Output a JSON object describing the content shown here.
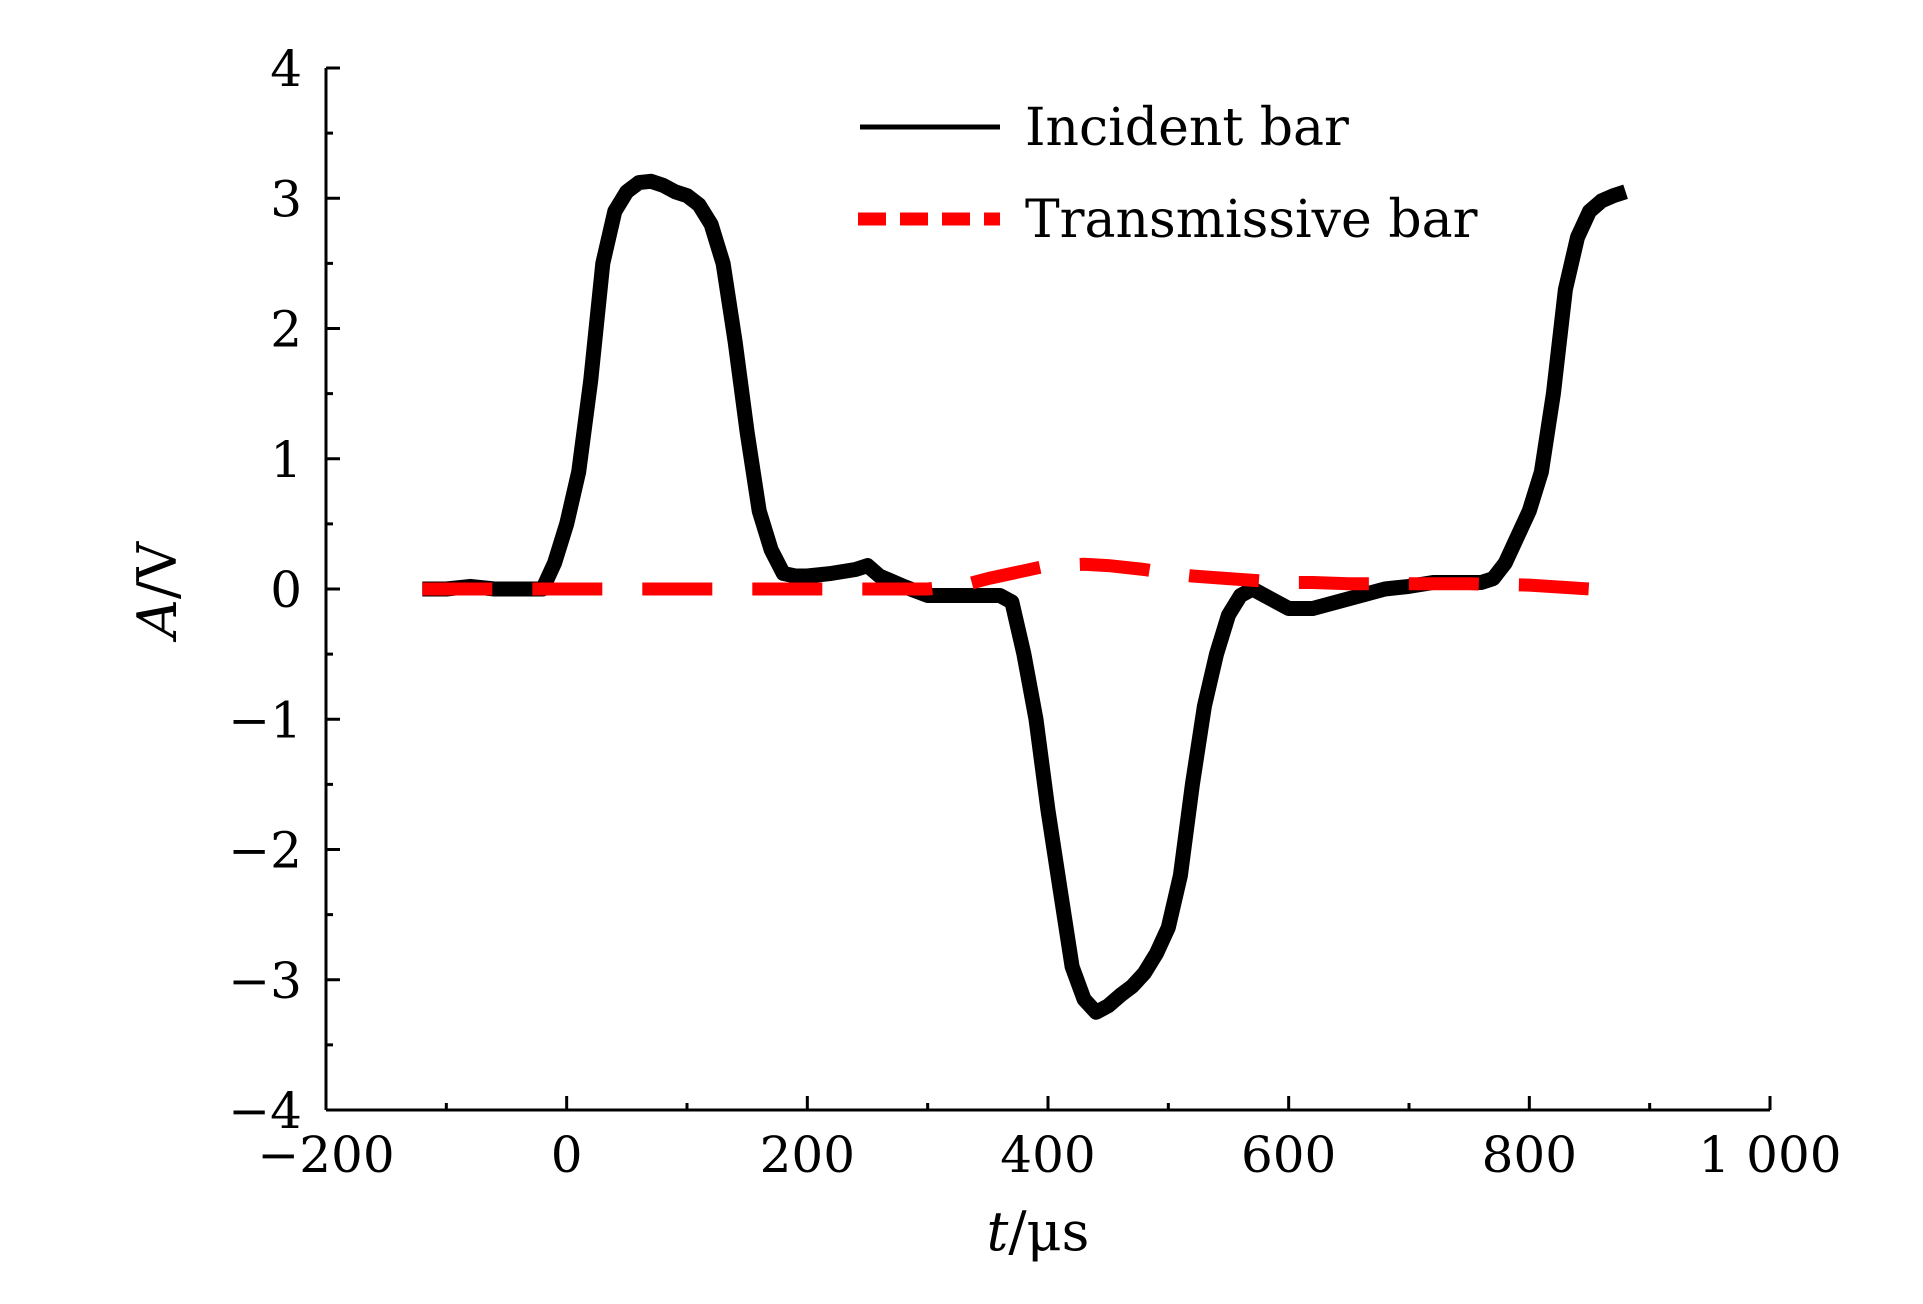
{
  "chart_data": {
    "type": "line",
    "title": "",
    "xlabel": {
      "var": "t",
      "unit": "/μs"
    },
    "ylabel": {
      "var": "A",
      "unit": "/V"
    },
    "xlim": [
      -200,
      1000
    ],
    "ylim": [
      -4,
      4
    ],
    "x_ticks": [
      -200,
      0,
      200,
      400,
      600,
      800,
      1000
    ],
    "x_tick_labels": [
      "−200",
      "0",
      "200",
      "400",
      "600",
      "800",
      "1 000"
    ],
    "y_ticks": [
      -4,
      -3,
      -2,
      -1,
      0,
      1,
      2,
      3,
      4
    ],
    "y_tick_labels": [
      "−4",
      "−3",
      "−2",
      "−1",
      "0",
      "1",
      "2",
      "3",
      "4"
    ],
    "grid": false,
    "legend_position": "top-right",
    "series": [
      {
        "name": "Incident bar",
        "color": "#000000",
        "style": "solid",
        "x": [
          -120,
          -100,
          -80,
          -60,
          -40,
          -20,
          -10,
          0,
          10,
          20,
          30,
          40,
          50,
          60,
          70,
          80,
          90,
          100,
          110,
          120,
          130,
          140,
          150,
          160,
          170,
          180,
          190,
          200,
          220,
          240,
          250,
          260,
          280,
          300,
          320,
          340,
          360,
          370,
          380,
          390,
          400,
          410,
          420,
          430,
          440,
          450,
          460,
          470,
          480,
          490,
          500,
          510,
          520,
          530,
          540,
          550,
          560,
          570,
          580,
          590,
          600,
          620,
          640,
          660,
          680,
          700,
          720,
          740,
          760,
          770,
          780,
          790,
          800,
          810,
          820,
          830,
          840,
          850,
          860,
          870,
          880
        ],
        "y": [
          0.0,
          0.0,
          0.02,
          0.0,
          0.0,
          0.0,
          0.2,
          0.5,
          0.9,
          1.6,
          2.5,
          2.9,
          3.05,
          3.12,
          3.13,
          3.1,
          3.05,
          3.02,
          2.95,
          2.8,
          2.5,
          1.9,
          1.2,
          0.6,
          0.3,
          0.12,
          0.1,
          0.1,
          0.12,
          0.15,
          0.18,
          0.1,
          0.02,
          -0.05,
          -0.05,
          -0.05,
          -0.05,
          -0.1,
          -0.5,
          -1.0,
          -1.7,
          -2.3,
          -2.9,
          -3.15,
          -3.25,
          -3.2,
          -3.12,
          -3.05,
          -2.95,
          -2.8,
          -2.6,
          -2.2,
          -1.5,
          -0.9,
          -0.5,
          -0.2,
          -0.05,
          0.0,
          -0.05,
          -0.1,
          -0.15,
          -0.15,
          -0.1,
          -0.05,
          0.0,
          0.02,
          0.05,
          0.05,
          0.05,
          0.08,
          0.2,
          0.4,
          0.6,
          0.9,
          1.5,
          2.3,
          2.7,
          2.9,
          2.98,
          3.02,
          3.05
        ]
      },
      {
        "name": "Transmissive bar",
        "color": "#ff0000",
        "style": "dashed",
        "x": [
          -120,
          -100,
          -50,
          0,
          50,
          100,
          150,
          200,
          250,
          300,
          330,
          350,
          380,
          400,
          430,
          450,
          480,
          500,
          520,
          550,
          580,
          600,
          620,
          650,
          700,
          750,
          800,
          850
        ],
        "y": [
          0.0,
          0.0,
          0.0,
          0.0,
          0.0,
          0.0,
          0.0,
          0.0,
          0.0,
          0.0,
          0.03,
          0.08,
          0.14,
          0.18,
          0.19,
          0.18,
          0.15,
          0.12,
          0.1,
          0.08,
          0.06,
          0.05,
          0.05,
          0.04,
          0.04,
          0.04,
          0.03,
          0.0
        ]
      }
    ]
  }
}
